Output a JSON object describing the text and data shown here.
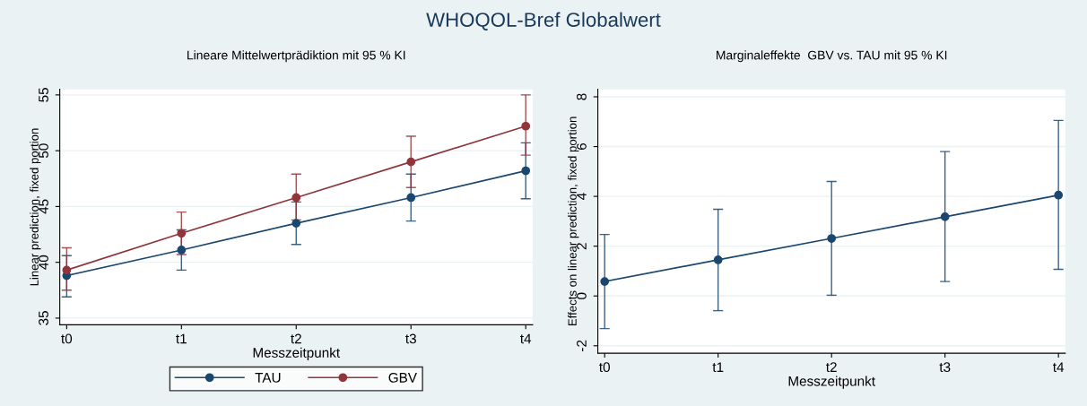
{
  "chart_data": [
    {
      "type": "line",
      "title": "WHOQOL-Bref Globalwert",
      "subtitle": "Lineare Mittelwertprädiktion mit 95 % KI",
      "xlabel": "Messzeitpunkt",
      "ylabel": "Linear prediction, fixed portion",
      "categories": [
        "t0",
        "t1",
        "t2",
        "t3",
        "t4"
      ],
      "ylim": [
        34.4,
        55.5
      ],
      "yticks": [
        35,
        40,
        45,
        50,
        55
      ],
      "grid": "y",
      "legend": "bottom",
      "marker": "circle",
      "line_style": "solid",
      "series": [
        {
          "name": "TAU",
          "color": "#1a476f",
          "values": [
            38.8,
            41.1,
            43.5,
            45.8,
            48.2
          ],
          "errors": [
            [
              36.9,
              40.6
            ],
            [
              39.3,
              42.9
            ],
            [
              41.6,
              45.4
            ],
            [
              43.7,
              47.9
            ],
            [
              45.7,
              50.7
            ]
          ]
        },
        {
          "name": "GBV",
          "color": "#90353b",
          "values": [
            39.3,
            42.6,
            45.8,
            49.0,
            52.2
          ],
          "errors": [
            [
              37.5,
              41.3
            ],
            [
              40.7,
              44.5
            ],
            [
              43.8,
              47.9
            ],
            [
              46.7,
              51.3
            ],
            [
              49.6,
              55.0
            ]
          ]
        }
      ]
    },
    {
      "type": "line",
      "subtitle": "Marginaleffekte  GBV vs. TAU mit 95 % KI",
      "xlabel": "Messzeitpunkt",
      "ylabel": "Effects on linear prediction, fixed portion",
      "categories": [
        "t0",
        "t1",
        "t2",
        "t3",
        "t4"
      ],
      "ylim": [
        -2.3,
        8.3
      ],
      "yticks": [
        -2,
        0,
        2,
        4,
        6,
        8
      ],
      "grid": "y",
      "marker": "circle",
      "line_style": "solid",
      "series": [
        {
          "color": "#1a476f",
          "values": [
            0.58,
            1.45,
            2.31,
            3.18,
            4.05
          ],
          "errors": [
            [
              -1.31,
              2.47
            ],
            [
              -0.59,
              3.48
            ],
            [
              0.03,
              4.6
            ],
            [
              0.58,
              5.8
            ],
            [
              1.07,
              7.05
            ]
          ]
        }
      ]
    }
  ]
}
